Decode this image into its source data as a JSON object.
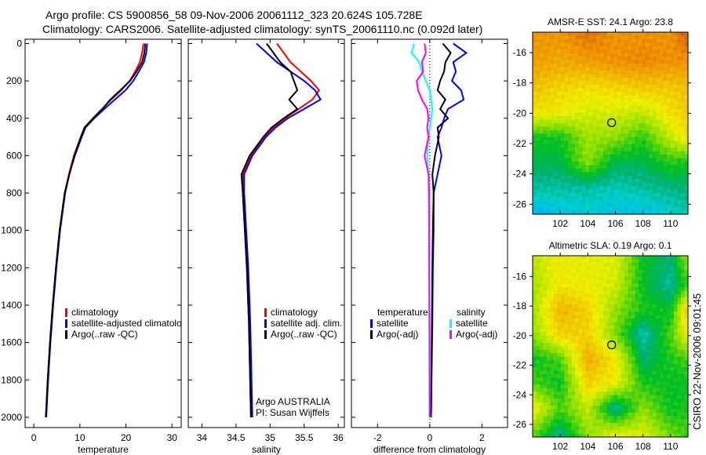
{
  "title_line1": "Argo profile: CS 5900856_58 09-Nov-2006 20061112_323 20.624S 105.728E",
  "title_line2": "Climatology: CARS2006. Satellite-adjusted climatology: synTS_20061110.nc (0.092d later)",
  "footer_stamp": "CSIRO 22-Nov-2006 09:01:45",
  "colors": {
    "red": "#ff0000",
    "blue": "#0000ff",
    "black": "#000000",
    "cyan": "#00ffff",
    "magenta": "#ff00ff"
  },
  "chart_data": [
    {
      "type": "line",
      "id": "temperature",
      "xlabel": "temperature",
      "xlim": [
        -1.9,
        32
      ],
      "ylim": [
        -23,
        2055
      ],
      "xticks": [
        "0",
        "10",
        "20",
        "30"
      ],
      "xtick_values": [
        0,
        10,
        20,
        30
      ],
      "yticks": [
        "0",
        "200",
        "400",
        "600",
        "800",
        "1000",
        "1200",
        "1400",
        "1600",
        "1800",
        "2000"
      ],
      "ytick_values": [
        0,
        200,
        400,
        600,
        800,
        1000,
        1200,
        1400,
        1600,
        1800,
        2000
      ],
      "legend": [
        "climatology",
        "satellite-adjusted climatolo"
      ],
      "legend2": "Argo(..raw -QC)",
      "depth": [
        0,
        50,
        100,
        150,
        200,
        250,
        300,
        350,
        400,
        450,
        500,
        600,
        700,
        800,
        1000,
        1200,
        1400,
        1600,
        1800,
        2000
      ],
      "series": [
        {
          "name": "climatology",
          "color": "red",
          "values": [
            23.8,
            23.5,
            23.0,
            22.0,
            20.8,
            19.0,
            16.8,
            14.8,
            12.8,
            11.0,
            10.2,
            8.7,
            7.6,
            6.7,
            5.6,
            4.8,
            4.1,
            3.5,
            3.0,
            2.6
          ]
        },
        {
          "name": "satellite-adjusted climatology",
          "color": "blue",
          "values": [
            24.6,
            24.4,
            23.9,
            22.8,
            21.6,
            19.9,
            17.6,
            15.3,
            13.1,
            11.2,
            10.4,
            8.9,
            7.7,
            6.8,
            5.7,
            4.9,
            4.2,
            3.6,
            3.1,
            2.7
          ]
        },
        {
          "name": "Argo(..raw -QC)",
          "color": "black",
          "values": [
            24.2,
            24.0,
            23.5,
            22.3,
            20.9,
            18.8,
            16.6,
            14.9,
            12.9,
            11.0,
            10.2,
            8.8,
            7.7,
            6.7,
            5.6,
            4.8,
            4.1,
            3.5,
            3.0,
            2.6
          ]
        }
      ]
    },
    {
      "type": "line",
      "id": "salinity",
      "xlabel": "salinity",
      "xlim": [
        33.8,
        36.09
      ],
      "ylim": [
        -23,
        2055
      ],
      "xticks": [
        "34",
        "34.5",
        "35",
        "35.5",
        "36"
      ],
      "xtick_values": [
        34,
        34.5,
        35,
        35.5,
        36
      ],
      "legend": [
        "climatology",
        "satellite adj. clim.",
        "Argo(..raw -QC)"
      ],
      "annotation": [
        "Argo AUSTRALIA",
        "PI: Susan Wijffels"
      ],
      "depth": [
        0,
        50,
        100,
        150,
        200,
        250,
        300,
        350,
        400,
        450,
        500,
        600,
        700,
        800,
        1000,
        1200,
        1500,
        2000
      ],
      "series": [
        {
          "name": "climatology",
          "color": "red",
          "values": [
            35.1,
            35.2,
            35.3,
            35.45,
            35.6,
            35.72,
            35.62,
            35.42,
            35.22,
            35.05,
            34.92,
            34.72,
            34.6,
            34.6,
            34.63,
            34.66,
            34.69,
            34.72
          ]
        },
        {
          "name": "satellite adj. clim.",
          "color": "blue",
          "values": [
            34.8,
            34.95,
            35.1,
            35.3,
            35.5,
            35.66,
            35.74,
            35.5,
            35.26,
            35.08,
            34.94,
            34.74,
            34.62,
            34.62,
            34.65,
            34.68,
            34.71,
            34.74
          ]
        },
        {
          "name": "Argo(..raw -QC)",
          "color": "black",
          "values": [
            34.95,
            35.05,
            35.15,
            35.3,
            35.35,
            35.4,
            35.28,
            35.4,
            35.2,
            35.02,
            34.9,
            34.7,
            34.58,
            34.6,
            34.63,
            34.66,
            34.69,
            34.72
          ]
        }
      ]
    },
    {
      "type": "line",
      "id": "difference",
      "xlabel": "difference from climatology",
      "xlim": [
        -3.0,
        2.98
      ],
      "ylim": [
        -23,
        2055
      ],
      "xticks": [
        "-2",
        "0",
        "2"
      ],
      "xtick_values": [
        -2,
        0,
        2
      ],
      "legend_temperature": [
        "temperature",
        "satellite",
        "Argo(-adj)"
      ],
      "legend_salinity": [
        "salinity",
        "satellite",
        "Argo(-adj)"
      ],
      "depth": [
        0,
        50,
        100,
        150,
        200,
        250,
        300,
        350,
        400,
        450,
        500,
        600,
        700,
        800,
        1000,
        1200,
        1500,
        2000
      ],
      "series": [
        {
          "name": "temperature satellite",
          "color": "blue",
          "values": [
            0.9,
            1.4,
            0.9,
            1.0,
            0.85,
            1.2,
            1.3,
            0.7,
            0.55,
            0.45,
            0.3,
            0.45,
            0.3,
            0.15,
            0.15,
            0.12,
            0.1,
            0.05
          ]
        },
        {
          "name": "temperature Argo(-adj)",
          "color": "black",
          "values": [
            0.5,
            0.8,
            0.6,
            0.55,
            0.4,
            0.3,
            0.6,
            0.4,
            0.7,
            0.3,
            0.35,
            0.2,
            0.1,
            0.15,
            0.12,
            0.1,
            0.08,
            0.05
          ]
        },
        {
          "name": "salinity satellite",
          "color": "cyan",
          "values": [
            -0.6,
            -0.7,
            -0.4,
            -0.3,
            -0.15,
            0.0,
            0.05,
            0.1,
            0.05,
            0.0,
            -0.05,
            -0.1,
            -0.05,
            -0.05,
            -0.03,
            -0.02,
            -0.02,
            -0.01
          ]
        },
        {
          "name": "salinity Argo(-adj)",
          "color": "magenta",
          "values": [
            -0.2,
            -0.15,
            -0.3,
            -0.25,
            -0.5,
            -0.45,
            -0.3,
            -0.1,
            -0.05,
            -0.1,
            -0.05,
            -0.2,
            -0.05,
            -0.02,
            -0.02,
            -0.02,
            -0.01,
            0.0
          ]
        }
      ]
    },
    {
      "type": "heatmap",
      "id": "sst-map",
      "title": "AMSR-E SST: 24.1 Argo: 23.8",
      "xlim": [
        100.0,
        111.26
      ],
      "ylim": [
        -26.66,
        -14.65
      ],
      "xticks": [
        "102",
        "104",
        "106",
        "108",
        "110"
      ],
      "xtick_values": [
        102,
        104,
        106,
        108,
        110
      ],
      "yticks": [
        "-16",
        "-18",
        "-20",
        "-22",
        "-24",
        "-26"
      ],
      "ytick_values": [
        -16,
        -18,
        -20,
        -22,
        -24,
        -26
      ],
      "clim": [
        20.5,
        26.0
      ],
      "grid_lon": [
        100,
        102,
        104,
        106,
        108,
        110,
        111.3
      ],
      "grid_lat": [
        -14.6,
        -16.6,
        -18.3,
        -19.9,
        -21.6,
        -23.2,
        -24.9,
        -26.7
      ],
      "values": [
        [
          25.2,
          25.2,
          25.5,
          25.2,
          25.2,
          25.2,
          25.7
        ],
        [
          25.1,
          25.0,
          25.1,
          25.2,
          25.3,
          25.2,
          25.2
        ],
        [
          24.8,
          24.6,
          24.5,
          24.6,
          24.7,
          24.7,
          24.8
        ],
        [
          24.5,
          24.4,
          24.2,
          24.2,
          24.1,
          24.5,
          24.7
        ],
        [
          23.3,
          23.3,
          23.9,
          23.8,
          23.4,
          24.1,
          24.5
        ],
        [
          23.1,
          23.1,
          23.8,
          23.1,
          23.1,
          23.4,
          23.3
        ],
        [
          22.8,
          22.8,
          22.8,
          22.7,
          22.8,
          22.9,
          23.0
        ],
        [
          22.3,
          22.4,
          22.5,
          22.4,
          22.4,
          22.6,
          22.7
        ]
      ],
      "marker": {
        "lon": 105.728,
        "lat": -20.624
      }
    },
    {
      "type": "heatmap",
      "id": "sla-map",
      "title": "Altimetric SLA: 0.19 Argo: 0.1",
      "xlim": [
        100.0,
        111.26
      ],
      "ylim": [
        -26.85,
        -14.6
      ],
      "xticks": [
        "102",
        "104",
        "106",
        "108",
        "110"
      ],
      "xtick_values": [
        102,
        104,
        106,
        108,
        110
      ],
      "yticks": [
        "-16",
        "-18",
        "-20",
        "-22",
        "-24",
        "-26"
      ],
      "ytick_values": [
        -16,
        -18,
        -20,
        -22,
        -24,
        -26
      ],
      "clim": [
        -0.25,
        0.35
      ],
      "grid_lon": [
        100,
        102,
        104,
        106,
        108,
        110,
        111.3
      ],
      "grid_lat": [
        -14.6,
        -16.6,
        -18.3,
        -19.9,
        -21.6,
        -23.2,
        -24.9,
        -26.9
      ],
      "values": [
        [
          0.14,
          0.17,
          0.16,
          0.16,
          0.05,
          0.02,
          0.12
        ],
        [
          0.12,
          0.18,
          0.17,
          0.15,
          0.05,
          0.0,
          0.08
        ],
        [
          0.12,
          0.23,
          0.2,
          0.11,
          0.06,
          0.05,
          0.22
        ],
        [
          0.11,
          0.2,
          0.2,
          0.1,
          -0.01,
          0.08,
          0.18
        ],
        [
          0.05,
          0.08,
          0.24,
          0.18,
          0.02,
          0.06,
          0.08
        ],
        [
          0.08,
          0.05,
          0.2,
          0.17,
          0.06,
          0.05,
          0.05
        ],
        [
          0.18,
          0.08,
          0.14,
          0.0,
          0.11,
          0.05,
          0.06
        ],
        [
          0.08,
          0.0,
          0.11,
          0.18,
          0.16,
          0.1,
          0.08
        ]
      ],
      "marker": {
        "lon": 105.728,
        "lat": -20.624
      }
    }
  ]
}
